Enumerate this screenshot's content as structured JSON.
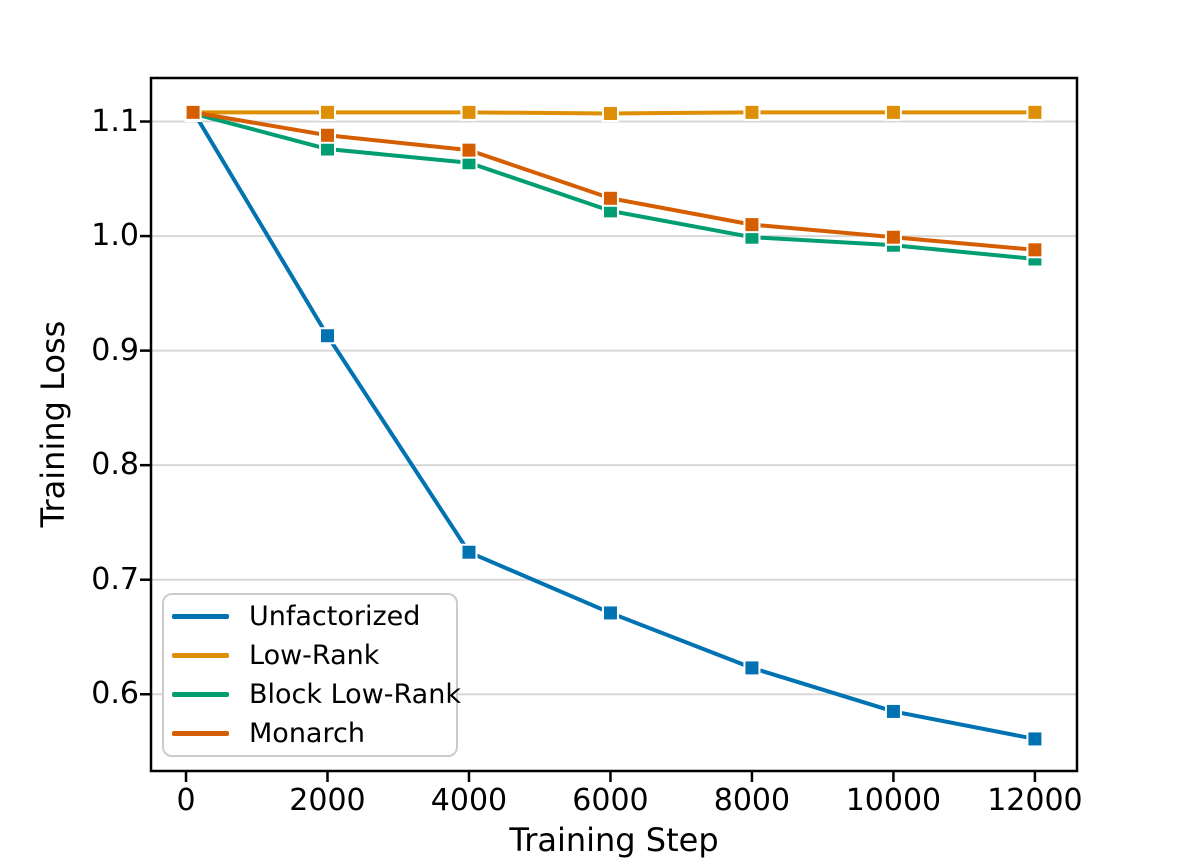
{
  "chart_data": {
    "type": "line",
    "title": "",
    "xlabel": "Training Step",
    "ylabel": "Training Loss",
    "x": [
      100,
      2000,
      4000,
      6000,
      8000,
      10000,
      12000
    ],
    "series": [
      {
        "name": "Unfactorized",
        "color": "#0173B2",
        "values": [
          1.109,
          0.913,
          0.724,
          0.671,
          0.623,
          0.585,
          0.561
        ]
      },
      {
        "name": "Low-Rank",
        "color": "#DE8F05",
        "values": [
          1.108,
          1.108,
          1.108,
          1.107,
          1.108,
          1.108,
          1.108
        ]
      },
      {
        "name": "Block Low-Rank",
        "color": "#029E73",
        "values": [
          1.107,
          1.076,
          1.064,
          1.022,
          0.999,
          0.992,
          0.98
        ]
      },
      {
        "name": "Monarch",
        "color": "#D55E00",
        "values": [
          1.108,
          1.088,
          1.075,
          1.033,
          1.01,
          0.999,
          0.988
        ]
      }
    ],
    "xticks": [
      0,
      2000,
      4000,
      6000,
      8000,
      10000,
      12000
    ],
    "yticks": [
      0.6,
      0.7,
      0.8,
      0.9,
      1.0,
      1.1
    ],
    "xlim": [
      -495,
      12595
    ],
    "ylim": [
      0.533,
      1.138
    ],
    "grid": "horizontal",
    "legend_position": "lower-left",
    "marker": "square",
    "colors": {
      "grid": "#d8d8d8",
      "spine": "#000000",
      "legend_border": "#cccccc",
      "background": "#ffffff"
    }
  }
}
